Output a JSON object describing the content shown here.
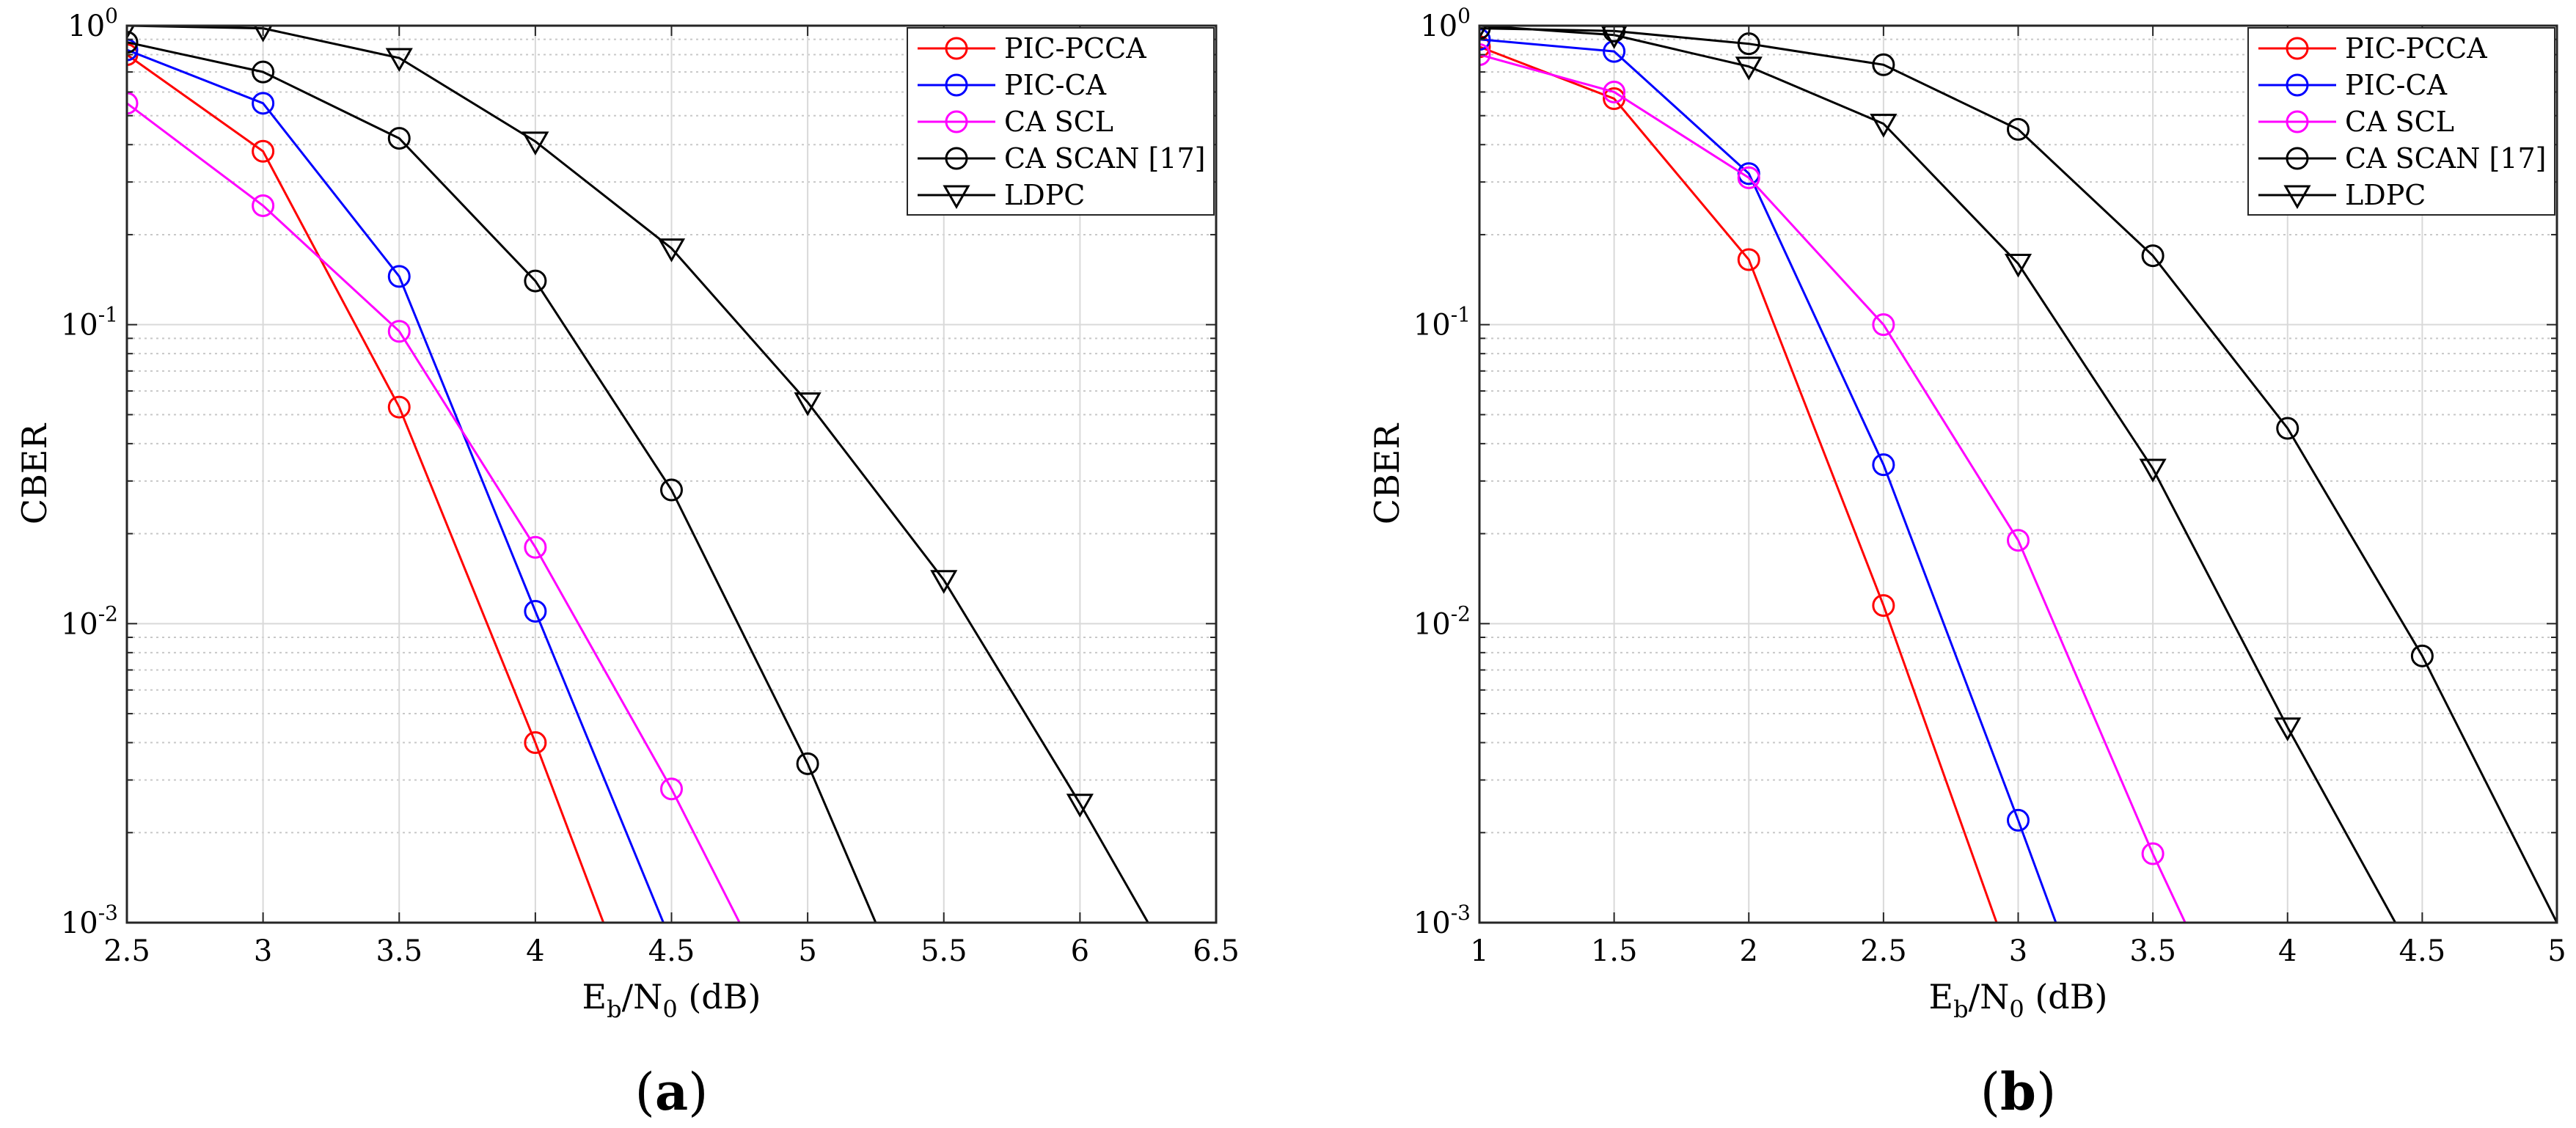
{
  "chart_data": [
    {
      "type": "line",
      "panel_label": "a",
      "xlabel": "Eb/N0 (dB)",
      "xlabel_parts": {
        "main": "E",
        "sub": "b",
        "sep": "/N",
        "sub2": "0",
        "rest": " (dB)"
      },
      "ylabel": "CBER",
      "yscale": "log",
      "xlim": [
        2.5,
        6.5
      ],
      "ylim": [
        0.001,
        1
      ],
      "xticks": [
        2.5,
        3,
        3.5,
        4,
        4.5,
        5,
        5.5,
        6,
        6.5
      ],
      "xtick_labels": [
        "2.5",
        "3",
        "3.5",
        "4",
        "4.5",
        "5",
        "5.5",
        "6",
        "6.5"
      ],
      "yticks": [
        {
          "value": 1,
          "base": "10",
          "exp": "0"
        },
        {
          "value": 0.1,
          "base": "10",
          "exp": "-1"
        },
        {
          "value": 0.01,
          "base": "10",
          "exp": "-2"
        },
        {
          "value": 0.001,
          "base": "10",
          "exp": "-3"
        }
      ],
      "grid": true,
      "legend_position": "top-right",
      "series": [
        {
          "name": "PIC-PCCA",
          "color": "#ff0000",
          "marker": "circle",
          "x": [
            2.5,
            3,
            3.5,
            4,
            4.25
          ],
          "y": [
            0.8,
            0.38,
            0.053,
            0.004,
            0.001
          ],
          "marker_count": 4
        },
        {
          "name": "PIC-CA",
          "color": "#0000ff",
          "marker": "circle",
          "x": [
            2.5,
            3,
            3.5,
            4,
            4.47
          ],
          "y": [
            0.83,
            0.55,
            0.145,
            0.011,
            0.001
          ],
          "marker_count": 4
        },
        {
          "name": "CA SCL",
          "color": "#ff00ff",
          "marker": "circle",
          "x": [
            2.5,
            3,
            3.5,
            4,
            4.5,
            4.75
          ],
          "y": [
            0.55,
            0.25,
            0.095,
            0.018,
            0.0028,
            0.001
          ],
          "marker_count": 5
        },
        {
          "name": "CA SCAN [17]",
          "color": "#000000",
          "marker": "circle",
          "x": [
            2.5,
            3,
            3.5,
            4,
            4.5,
            5,
            5.25
          ],
          "y": [
            0.88,
            0.7,
            0.42,
            0.14,
            0.028,
            0.0034,
            0.001
          ],
          "marker_count": 6
        },
        {
          "name": "LDPC",
          "color": "#000000",
          "marker": "triangle-down",
          "x": [
            2.5,
            3,
            3.5,
            4,
            4.5,
            5,
            5.5,
            6,
            6.25
          ],
          "y": [
            1.0,
            0.98,
            0.78,
            0.41,
            0.18,
            0.055,
            0.014,
            0.0025,
            0.001
          ],
          "marker_count": 8
        }
      ]
    },
    {
      "type": "line",
      "panel_label": "b",
      "xlabel": "Eb/N0 (dB)",
      "xlabel_parts": {
        "main": "E",
        "sub": "b",
        "sep": "/N",
        "sub2": "0",
        "rest": " (dB)"
      },
      "ylabel": "CBER",
      "yscale": "log",
      "xlim": [
        1,
        5
      ],
      "ylim": [
        0.001,
        1
      ],
      "xticks": [
        1,
        1.5,
        2,
        2.5,
        3,
        3.5,
        4,
        4.5,
        5
      ],
      "xtick_labels": [
        "1",
        "1.5",
        "2",
        "2.5",
        "3",
        "3.5",
        "4",
        "4.5",
        "5"
      ],
      "yticks": [
        {
          "value": 1,
          "base": "10",
          "exp": "0"
        },
        {
          "value": 0.1,
          "base": "10",
          "exp": "-1"
        },
        {
          "value": 0.01,
          "base": "10",
          "exp": "-2"
        },
        {
          "value": 0.001,
          "base": "10",
          "exp": "-3"
        }
      ],
      "grid": true,
      "legend_position": "top-right",
      "series": [
        {
          "name": "PIC-PCCA",
          "color": "#ff0000",
          "marker": "circle",
          "x": [
            1,
            1.5,
            2,
            2.5,
            2.92
          ],
          "y": [
            0.85,
            0.57,
            0.165,
            0.0115,
            0.001
          ],
          "marker_count": 4
        },
        {
          "name": "PIC-CA",
          "color": "#0000ff",
          "marker": "circle",
          "x": [
            1,
            1.5,
            2,
            2.5,
            3,
            3.14
          ],
          "y": [
            0.9,
            0.82,
            0.32,
            0.034,
            0.0022,
            0.001
          ],
          "marker_count": 5
        },
        {
          "name": "CA SCL",
          "color": "#ff00ff",
          "marker": "circle",
          "x": [
            1,
            1.5,
            2,
            2.5,
            3,
            3.5,
            3.62
          ],
          "y": [
            0.8,
            0.6,
            0.31,
            0.1,
            0.019,
            0.0017,
            0.001
          ],
          "marker_count": 6
        },
        {
          "name": "CA SCAN [17]",
          "color": "#000000",
          "marker": "circle",
          "x": [
            1,
            1.5,
            2,
            2.5,
            3,
            3.5,
            4,
            4.5,
            5
          ],
          "y": [
            0.98,
            0.96,
            0.87,
            0.74,
            0.45,
            0.17,
            0.045,
            0.0078,
            0.001
          ],
          "marker_count": 8
        },
        {
          "name": "LDPC",
          "color": "#000000",
          "marker": "triangle-down",
          "x": [
            1,
            1.5,
            2,
            2.5,
            3,
            3.5,
            4,
            4.4
          ],
          "y": [
            1.0,
            0.93,
            0.73,
            0.47,
            0.16,
            0.033,
            0.0045,
            0.001
          ],
          "marker_count": 7
        }
      ]
    }
  ]
}
